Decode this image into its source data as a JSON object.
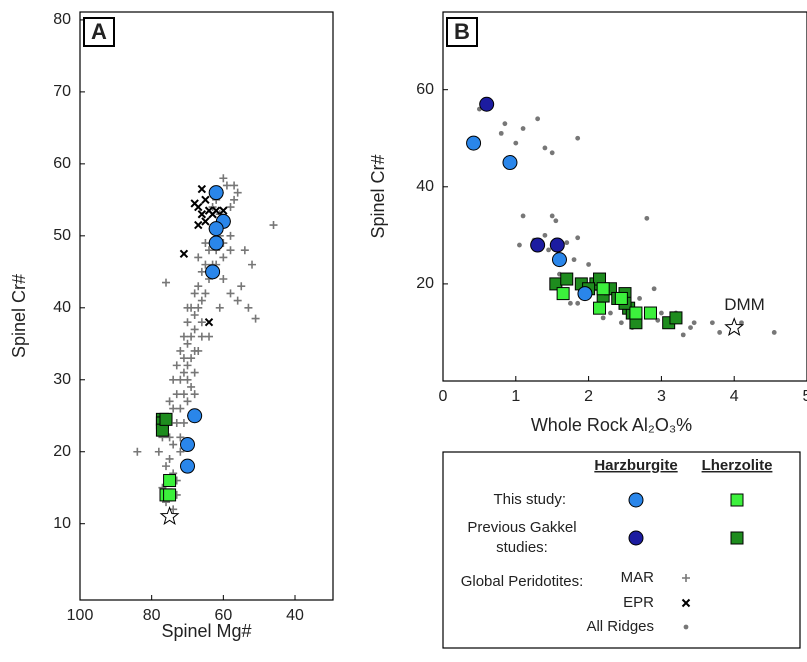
{
  "chart_data": [
    {
      "type": "scatter",
      "panel_label": "A",
      "x_label": "Spinel Mg#",
      "y_label": "Spinel Cr#",
      "xlim": [
        100,
        29.4
      ],
      "ylim": [
        -0.6,
        81.1
      ],
      "xticks": [
        100,
        80,
        60,
        40
      ],
      "yticks": [
        10,
        20,
        30,
        40,
        50,
        60,
        70,
        80
      ],
      "series": [
        {
          "name": "MAR",
          "marker": "plus",
          "color": "#777777",
          "x": [
            76,
            74,
            77,
            73,
            76,
            75,
            78,
            84,
            74,
            72,
            75,
            77,
            73,
            71,
            74,
            72,
            70,
            73,
            71,
            69,
            72,
            70,
            71,
            73,
            70,
            69,
            72,
            68,
            70,
            71,
            69,
            68,
            70,
            66,
            68,
            69,
            67,
            66,
            65,
            68,
            67,
            64,
            66,
            65,
            63,
            67,
            64,
            62,
            65,
            61,
            63,
            60,
            58,
            59,
            61,
            58,
            57,
            59,
            60,
            57,
            56,
            54,
            52,
            51,
            46,
            55,
            53,
            58,
            60,
            56,
            61,
            64,
            67,
            76,
            70,
            74,
            69,
            68,
            75,
            72,
            74,
            73,
            71,
            68,
            66,
            62,
            60,
            58,
            62,
            61,
            63
          ],
          "values": [
            13,
            12,
            15,
            16,
            18,
            19,
            20,
            20,
            21,
            22,
            22,
            22,
            24,
            24,
            26,
            26,
            27,
            28,
            28,
            29,
            30,
            30,
            31,
            32,
            32,
            33,
            34,
            34,
            35,
            36,
            36,
            37,
            38,
            38,
            39,
            40,
            40,
            41,
            42,
            42,
            43,
            44,
            45,
            46,
            46,
            47,
            48,
            48,
            49,
            50,
            51,
            49,
            50,
            52,
            53,
            54,
            55,
            57,
            58,
            57,
            56,
            48,
            46,
            38.5,
            51.5,
            43,
            40,
            42,
            44,
            41,
            40,
            36,
            34,
            43.5,
            40,
            30,
            25,
            28,
            27,
            20,
            17,
            14,
            33,
            31,
            36,
            46,
            47,
            48,
            55,
            56,
            54
          ]
        },
        {
          "name": "EPR",
          "marker": "cross",
          "color": "#000000",
          "x": [
            67,
            68,
            66,
            65,
            66,
            64,
            62,
            60,
            63,
            71,
            64,
            67,
            65
          ],
          "values": [
            54,
            54.5,
            56.5,
            55,
            53,
            53.5,
            53.5,
            53.5,
            53,
            47.5,
            38,
            51.5,
            52
          ]
        },
        {
          "marker": "square",
          "color": "#1e8c1e",
          "x": [
            77,
            77,
            77,
            76
          ],
          "values": [
            24.5,
            24,
            23,
            24.5
          ]
        },
        {
          "marker": "square",
          "color": "#3cf03c",
          "x": [
            75,
            76,
            75
          ],
          "values": [
            16,
            14,
            14
          ]
        },
        {
          "marker": "circle",
          "color": "#2a86ea",
          "x": [
            62,
            60,
            62,
            62,
            63,
            68,
            70,
            70
          ],
          "values": [
            56,
            52,
            51,
            49,
            45,
            25,
            21,
            18
          ]
        },
        {
          "marker": "star",
          "color": "#ffffff",
          "x": [
            75
          ],
          "values": [
            11
          ]
        }
      ]
    },
    {
      "type": "scatter",
      "panel_label": "B",
      "x_label": "Whole Rock Al₂O₃%",
      "y_label": "Spinel Cr#",
      "xlim": [
        0,
        5
      ],
      "ylim": [
        0,
        76
      ],
      "xticks": [
        0,
        1,
        2,
        3,
        4,
        5
      ],
      "yticks": [
        20,
        40,
        60
      ],
      "series": [
        {
          "name": "All Ridges",
          "marker": "dot",
          "color": "#777777",
          "x": [
            0.5,
            0.8,
            1.0,
            1.1,
            1.3,
            1.85,
            1.4,
            1.5,
            1.1,
            1.05,
            1.25,
            1.5,
            1.55,
            1.4,
            1.85,
            1.6,
            1.8,
            2.0,
            2.1,
            2.2,
            1.85,
            1.75,
            2.3,
            2.45,
            2.7,
            2.8,
            2.9,
            3.0,
            3.2,
            3.4,
            3.3,
            3.7,
            3.8,
            4.1,
            4.55,
            1.45,
            2.2,
            2.6,
            2.95,
            3.45,
            0.85,
            1.7
          ],
          "values": [
            56,
            51,
            49,
            52,
            54,
            50,
            48,
            47,
            34,
            28,
            29,
            34,
            33,
            30,
            29.5,
            22,
            25,
            24,
            19,
            21,
            16,
            16,
            14,
            12,
            17,
            33.5,
            19,
            14,
            14,
            11,
            9.5,
            12,
            10,
            12,
            10,
            27,
            13,
            11,
            12.5,
            12,
            53,
            28.5
          ]
        },
        {
          "marker": "square",
          "color": "#1e8c1e",
          "x": [
            1.55,
            1.7,
            1.9,
            2.1,
            2.15,
            2.2,
            2.3,
            2.4,
            2.5,
            2.55,
            2.6,
            2.65,
            2.5,
            3.1,
            3.2,
            2.0
          ],
          "values": [
            20,
            21,
            20,
            20,
            21,
            17.5,
            19,
            17,
            18,
            15,
            14,
            12,
            16,
            12,
            13,
            19
          ]
        },
        {
          "marker": "square",
          "color": "#3cf03c",
          "x": [
            1.65,
            2.15,
            2.65,
            2.85,
            2.2,
            2.45
          ],
          "values": [
            18,
            15,
            14,
            14,
            19,
            17
          ]
        },
        {
          "marker": "circle",
          "color": "#1c1ca0",
          "x": [
            0.6,
            1.3,
            1.57
          ],
          "values": [
            57,
            28,
            28
          ]
        },
        {
          "marker": "circle",
          "color": "#2a86ea",
          "x": [
            0.42,
            0.92,
            1.6,
            1.95
          ],
          "values": [
            49,
            45,
            25,
            18
          ]
        },
        {
          "name": "DMM",
          "marker": "star",
          "color": "#ffffff",
          "x": [
            4
          ],
          "values": [
            11
          ]
        }
      ]
    }
  ],
  "legend": {
    "columns": [
      "Harzburgite",
      "Lherzolite"
    ],
    "rows": [
      {
        "label": [
          "This study:"
        ],
        "symbols": [
          {
            "marker": "circle",
            "color": "#2a86ea"
          },
          {
            "marker": "square",
            "color": "#3cf03c"
          }
        ]
      },
      {
        "label": [
          "Previous Gakkel",
          "studies:"
        ],
        "symbols": [
          {
            "marker": "circle",
            "color": "#1c1ca0"
          },
          {
            "marker": "square",
            "color": "#1e8c1e"
          }
        ]
      }
    ],
    "global_label": "Global Peridotites:"
  }
}
